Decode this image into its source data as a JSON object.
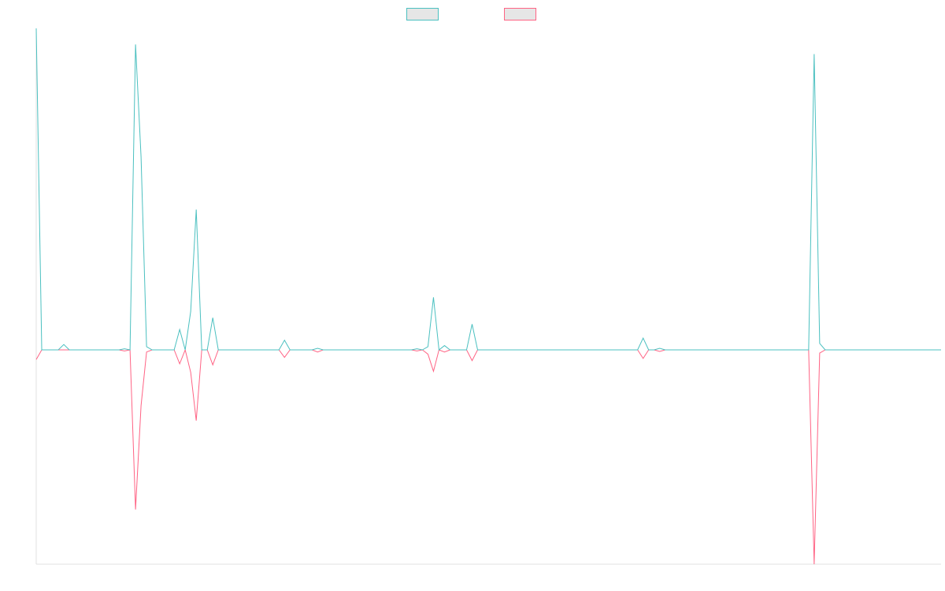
{
  "chart_data": {
    "type": "line",
    "categories": [
      null,
      null,
      null,
      null,
      null,
      null,
      null,
      null,
      null,
      null,
      null,
      null,
      null,
      null,
      null,
      null,
      null,
      null,
      null,
      null,
      null,
      null,
      null,
      null,
      null,
      null,
      null,
      null,
      null,
      null,
      null,
      null,
      null,
      null,
      null,
      null,
      null,
      null,
      null,
      null,
      null,
      null,
      null,
      null,
      null,
      null,
      null,
      null,
      null,
      null,
      null,
      null,
      null,
      null,
      null,
      null,
      null,
      null,
      null,
      null,
      null,
      null,
      null,
      null,
      null,
      null,
      null,
      null,
      null,
      null,
      null,
      null,
      null,
      null,
      null,
      null,
      null,
      null,
      null,
      null,
      null,
      null,
      null,
      null,
      null,
      null,
      null,
      null,
      null,
      null,
      null,
      null,
      null,
      null,
      null,
      null,
      null,
      null,
      null,
      null,
      null,
      null,
      null,
      null,
      null,
      null,
      null,
      null,
      null,
      null,
      null,
      null,
      null,
      null,
      null,
      null,
      null,
      null,
      null,
      null,
      null,
      null,
      null,
      null,
      null,
      null,
      null,
      null,
      null,
      null,
      null,
      null,
      null,
      null,
      null,
      null,
      null,
      null,
      null,
      null,
      null,
      null,
      null,
      null,
      null,
      null,
      null,
      null,
      null,
      null,
      null,
      null,
      null,
      null,
      null,
      null,
      null,
      null,
      null,
      null,
      null,
      null,
      null,
      null,
      null
    ],
    "series": [
      {
        "color": "#4bc0c0",
        "values": [
          3,
          0,
          0,
          0,
          0,
          0.05,
          0,
          0,
          0,
          0,
          0,
          0,
          0,
          0,
          0,
          0,
          0.01,
          0,
          2.85,
          1.8,
          0.03,
          0,
          0,
          0,
          0,
          0,
          0.19,
          0,
          0.36,
          1.31,
          0,
          0,
          0.3,
          0,
          0,
          0,
          0,
          0,
          0,
          0,
          0,
          0,
          0,
          0,
          0,
          0.09,
          0,
          0,
          0,
          0,
          0,
          0.015,
          0,
          0,
          0,
          0,
          0,
          0,
          0,
          0,
          0,
          0,
          0,
          0,
          0,
          0,
          0,
          0,
          0,
          0.01,
          0,
          0.03,
          0.49,
          0,
          0.04,
          0,
          0,
          0,
          0,
          0.24,
          0,
          0,
          0,
          0,
          0,
          0,
          0,
          0,
          0,
          0,
          0,
          0,
          0,
          0,
          0,
          0,
          0,
          0,
          0,
          0,
          0,
          0,
          0,
          0,
          0,
          0,
          0,
          0,
          0,
          0,
          0.11,
          0,
          0,
          0.015,
          0,
          0,
          0,
          0,
          0,
          0,
          0,
          0,
          0,
          0,
          0,
          0,
          0,
          0,
          0,
          0,
          0,
          0,
          0,
          0,
          0,
          0,
          0,
          0,
          0,
          0,
          0,
          2.76,
          0.06,
          0,
          0,
          0,
          0,
          0,
          0,
          0,
          0,
          0,
          0,
          0,
          0,
          0,
          0,
          0,
          0,
          0,
          0,
          0,
          0,
          0,
          0
        ]
      },
      {
        "color": "#ff6384",
        "values": [
          -0.09,
          0,
          0,
          0,
          0,
          0,
          0,
          0,
          0,
          0,
          0,
          0,
          0,
          0,
          0,
          0,
          -0.01,
          0,
          -1.49,
          -0.52,
          -0.02,
          0,
          0,
          0,
          0,
          0,
          -0.13,
          0,
          -0.21,
          -0.66,
          0,
          0,
          -0.14,
          0,
          0,
          0,
          0,
          0,
          0,
          0,
          0,
          0,
          0,
          0,
          0,
          -0.07,
          0,
          0,
          0,
          0,
          0,
          -0.02,
          0,
          0,
          0,
          0,
          0,
          0,
          0,
          0,
          0,
          0,
          0,
          0,
          0,
          0,
          0,
          0,
          0,
          -0.01,
          0,
          -0.04,
          -0.2,
          0,
          -0.02,
          0,
          0,
          0,
          0,
          -0.1,
          0,
          0,
          0,
          0,
          0,
          0,
          0,
          0,
          0,
          0,
          0,
          0,
          0,
          0,
          0,
          0,
          0,
          0,
          0,
          0,
          0,
          0,
          0,
          0,
          0,
          0,
          0,
          0,
          0,
          0,
          -0.08,
          0,
          0,
          -0.015,
          0,
          0,
          0,
          0,
          0,
          0,
          0,
          0,
          0,
          0,
          0,
          0,
          0,
          0,
          0,
          0,
          0,
          0,
          0,
          0,
          0,
          0,
          0,
          0,
          0,
          0,
          0,
          -2,
          -0.03,
          0,
          0,
          0,
          0,
          0,
          0,
          0,
          0,
          0,
          0,
          0,
          0,
          0,
          0,
          0,
          0,
          0,
          0,
          0,
          0,
          0,
          0
        ]
      }
    ],
    "ylim": [
      -2,
      3
    ],
    "legend": "top"
  }
}
